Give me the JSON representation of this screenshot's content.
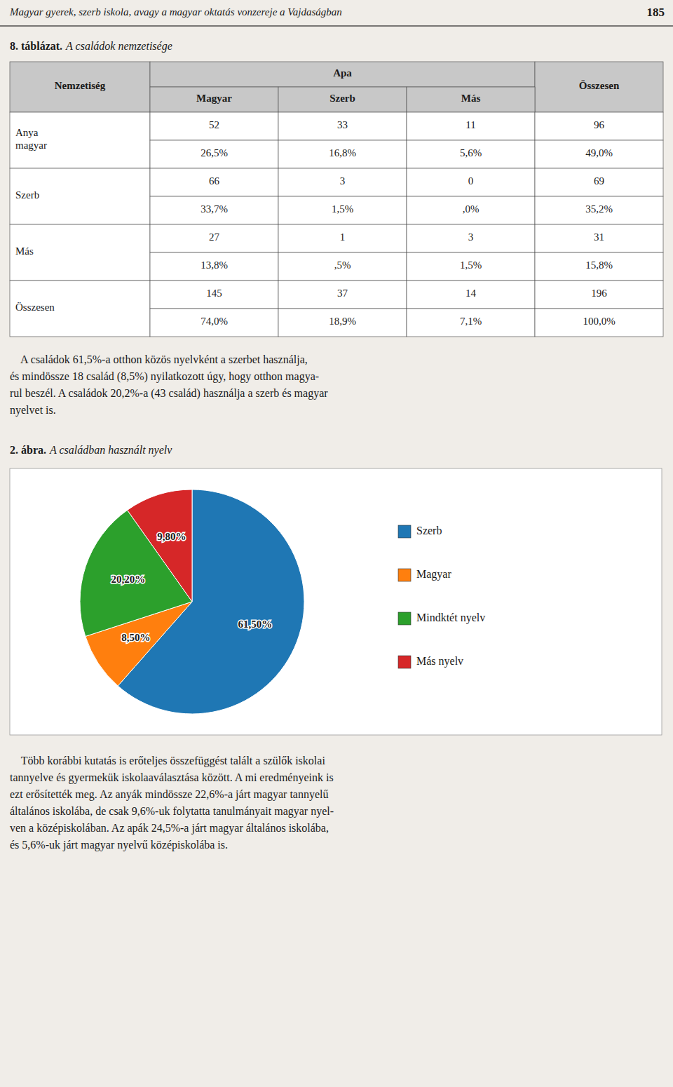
{
  "page": {
    "header": "Magyar gyerek, szerb iskola, avagy a magyar oktatás vonzereje a Vajdaságban",
    "page_number": "185",
    "table_title": "8. táblázat.",
    "table_subtitle": "A családok nemzetisége",
    "table_header": {
      "col0": "Nemzetiség",
      "group": "Apa",
      "sub": [
        "Magyar",
        "Szerb",
        "Más"
      ],
      "total": "Összesen"
    },
    "table_rows": [
      {
        "label": "Anya\nmagyar",
        "cells": [
          [
            "52",
            "26,5%"
          ],
          [
            "33",
            "16,8%"
          ],
          [
            "11",
            "5,6%"
          ],
          [
            "96",
            "49,0%"
          ]
        ]
      },
      {
        "label": "Szerb",
        "cells": [
          [
            "66",
            "33,7%"
          ],
          [
            "3",
            "1,5%"
          ],
          [
            "0",
            ",0%"
          ],
          [
            "69",
            "35,2%"
          ]
        ]
      },
      {
        "label": "Más",
        "cells": [
          [
            "27",
            "13,8%"
          ],
          [
            "1",
            ",5%"
          ],
          [
            "3",
            "1,5%"
          ],
          [
            "31",
            "15,8%"
          ]
        ]
      },
      {
        "label": "Összesen",
        "cells": [
          [
            "145",
            "74,0%"
          ],
          [
            "37",
            "18,9%"
          ],
          [
            "14",
            "7,1%"
          ],
          [
            "196",
            "100,0%"
          ]
        ]
      }
    ],
    "paragraph1": [
      "    A családok 61,5%-a otthon közös nyelvként a szerbet használja,",
      "és mindössze 18 család (8,5%) nyilatkozott úgy, hogy otthon magya-",
      "rul beszél. A családok 20,2%-a (43 család) használja a szerb és magyar",
      "nyelvet is."
    ],
    "paragraph2": [
      "    Több korábbi kutatás is erőteljes összefüggést talált a szülők iskolai",
      "tannyelve és gyermekük iskolaaválasztása között. A mi eredményeink is",
      "ezt erősítették meg. Az anyák mindössze 22,6%-a járt magyar tannyelű",
      "általános iskolába, de csak 9,6%-uk folytatta tanulmányait magyar nyel-",
      "ven a középiskolában. Az apák 24,5%-a járt magyar általános iskolába,",
      "és 5,6%-uk járt magyar nyelvű középiskolába is."
    ]
  },
  "chart_data": {
    "type": "pie",
    "title": "2. ábra.",
    "subtitle": "A családban használt nyelv",
    "categories": [
      "Szerb",
      "Magyar",
      "Mindktét nyelv",
      "Más nyelv"
    ],
    "values": [
      61.5,
      8.5,
      20.2,
      9.8
    ],
    "value_labels": [
      "61,50%",
      "8,50%",
      "20,20%",
      "9,80%"
    ],
    "data_labels": true,
    "legend": "right"
  }
}
